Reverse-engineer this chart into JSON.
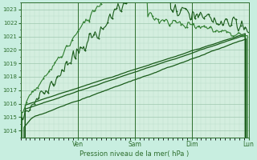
{
  "xlabel": "Pression niveau de la mer( hPa )",
  "bg_color": "#c8eee0",
  "plot_bg_color": "#d4eedf",
  "grid_major_color": "#a0c8b0",
  "grid_minor_color": "#b8ddc8",
  "tick_label_color": "#2d6e2d",
  "axis_label_color": "#2d6e2d",
  "spine_color": "#2d6e2d",
  "ylim": [
    1013.5,
    1023.5
  ],
  "yticks": [
    1014,
    1015,
    1016,
    1017,
    1018,
    1019,
    1020,
    1021,
    1022,
    1023
  ],
  "day_labels": [
    "Ven",
    "Sam",
    "Dim",
    "Lun"
  ],
  "day_positions": [
    0.25,
    0.5,
    0.75,
    1.0
  ],
  "line_color_dark": "#1a5c1a",
  "line_color_mid": "#2e7d2e",
  "line_color_light": "#4a9a4a"
}
